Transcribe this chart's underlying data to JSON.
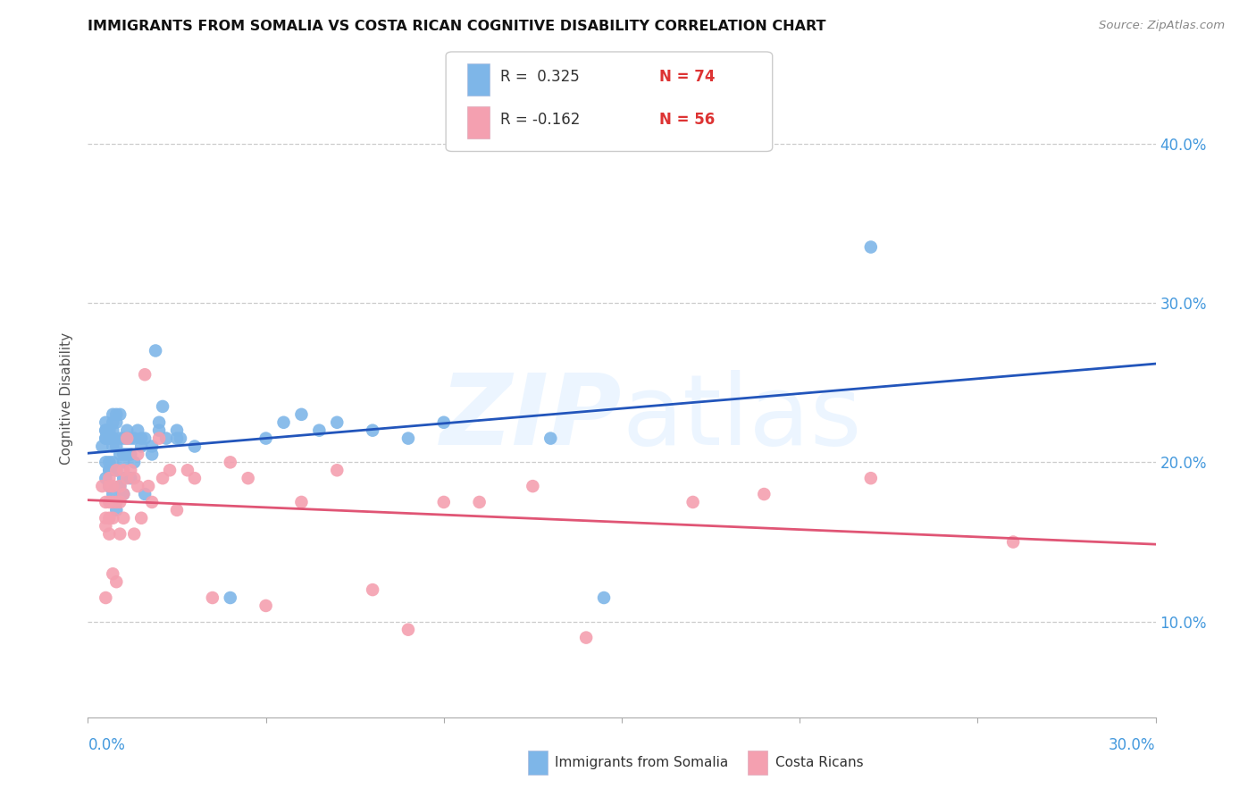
{
  "title": "IMMIGRANTS FROM SOMALIA VS COSTA RICAN COGNITIVE DISABILITY CORRELATION CHART",
  "source": "Source: ZipAtlas.com",
  "ylabel": "Cognitive Disability",
  "y_ticks": [
    0.1,
    0.2,
    0.3,
    0.4
  ],
  "y_tick_labels": [
    "10.0%",
    "20.0%",
    "30.0%",
    "40.0%"
  ],
  "x_range": [
    0.0,
    0.3
  ],
  "y_range": [
    0.04,
    0.44
  ],
  "blue_color": "#7EB6E8",
  "pink_color": "#F4A0B0",
  "blue_line_color": "#2255BB",
  "pink_line_color": "#E05575",
  "legend_blue_R": "R =  0.325",
  "legend_blue_N": "N = 74",
  "legend_pink_R": "R = -0.162",
  "legend_pink_N": "N = 56",
  "blue_scatter_x": [
    0.004,
    0.005,
    0.005,
    0.005,
    0.005,
    0.005,
    0.005,
    0.005,
    0.006,
    0.006,
    0.006,
    0.006,
    0.006,
    0.006,
    0.006,
    0.006,
    0.007,
    0.007,
    0.007,
    0.007,
    0.007,
    0.007,
    0.007,
    0.007,
    0.008,
    0.008,
    0.008,
    0.008,
    0.008,
    0.009,
    0.009,
    0.009,
    0.009,
    0.01,
    0.01,
    0.01,
    0.01,
    0.01,
    0.011,
    0.011,
    0.011,
    0.012,
    0.012,
    0.012,
    0.013,
    0.013,
    0.014,
    0.015,
    0.015,
    0.016,
    0.016,
    0.018,
    0.018,
    0.019,
    0.02,
    0.02,
    0.021,
    0.022,
    0.025,
    0.025,
    0.026,
    0.03,
    0.04,
    0.05,
    0.055,
    0.06,
    0.065,
    0.07,
    0.08,
    0.09,
    0.1,
    0.13,
    0.145,
    0.22
  ],
  "blue_scatter_y": [
    0.21,
    0.215,
    0.22,
    0.22,
    0.225,
    0.2,
    0.19,
    0.215,
    0.22,
    0.215,
    0.2,
    0.195,
    0.185,
    0.215,
    0.195,
    0.185,
    0.225,
    0.23,
    0.22,
    0.215,
    0.21,
    0.2,
    0.215,
    0.18,
    0.23,
    0.225,
    0.21,
    0.195,
    0.17,
    0.23,
    0.215,
    0.205,
    0.185,
    0.215,
    0.205,
    0.2,
    0.19,
    0.18,
    0.22,
    0.215,
    0.205,
    0.215,
    0.205,
    0.19,
    0.215,
    0.2,
    0.22,
    0.215,
    0.21,
    0.215,
    0.18,
    0.21,
    0.205,
    0.27,
    0.225,
    0.22,
    0.235,
    0.215,
    0.22,
    0.215,
    0.215,
    0.21,
    0.115,
    0.215,
    0.225,
    0.23,
    0.22,
    0.225,
    0.22,
    0.215,
    0.225,
    0.215,
    0.115,
    0.335
  ],
  "pink_scatter_x": [
    0.004,
    0.005,
    0.005,
    0.005,
    0.005,
    0.006,
    0.006,
    0.006,
    0.006,
    0.006,
    0.007,
    0.007,
    0.007,
    0.007,
    0.008,
    0.008,
    0.008,
    0.009,
    0.009,
    0.009,
    0.01,
    0.01,
    0.01,
    0.011,
    0.011,
    0.012,
    0.013,
    0.013,
    0.014,
    0.014,
    0.015,
    0.016,
    0.017,
    0.018,
    0.02,
    0.021,
    0.023,
    0.025,
    0.028,
    0.03,
    0.035,
    0.04,
    0.045,
    0.05,
    0.06,
    0.07,
    0.08,
    0.09,
    0.1,
    0.11,
    0.125,
    0.14,
    0.17,
    0.19,
    0.22,
    0.26
  ],
  "pink_scatter_y": [
    0.185,
    0.175,
    0.165,
    0.16,
    0.115,
    0.19,
    0.185,
    0.175,
    0.165,
    0.155,
    0.185,
    0.175,
    0.165,
    0.13,
    0.195,
    0.175,
    0.125,
    0.185,
    0.175,
    0.155,
    0.195,
    0.18,
    0.165,
    0.215,
    0.19,
    0.195,
    0.19,
    0.155,
    0.205,
    0.185,
    0.165,
    0.255,
    0.185,
    0.175,
    0.215,
    0.19,
    0.195,
    0.17,
    0.195,
    0.19,
    0.115,
    0.2,
    0.19,
    0.11,
    0.175,
    0.195,
    0.12,
    0.095,
    0.175,
    0.175,
    0.185,
    0.09,
    0.175,
    0.18,
    0.19,
    0.15
  ]
}
